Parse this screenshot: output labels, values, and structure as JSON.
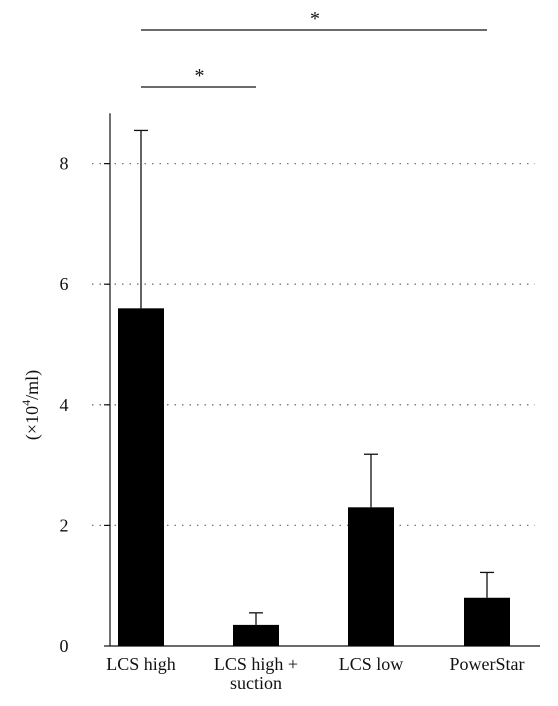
{
  "chart_data": {
    "type": "bar",
    "categories": [
      [
        "LCS high"
      ],
      [
        "LCS high +",
        "suction"
      ],
      [
        "LCS low"
      ],
      [
        "PowerStar"
      ]
    ],
    "values": [
      5.6,
      0.35,
      2.3,
      0.8
    ],
    "error_upper": [
      8.55,
      0.55,
      3.18,
      1.22
    ],
    "title": "",
    "xlabel": "",
    "ylabel_prefix": "(×10",
    "ylabel_sup": "4",
    "ylabel_suffix": "/ml)",
    "ylim": [
      0,
      9
    ],
    "yticks": [
      0,
      2,
      4,
      6,
      8
    ],
    "grid": true,
    "bar_color": "#000000",
    "significance": [
      {
        "from": 0,
        "to": 3,
        "label": "*"
      },
      {
        "from": 0,
        "to": 1,
        "label": "*"
      }
    ]
  }
}
